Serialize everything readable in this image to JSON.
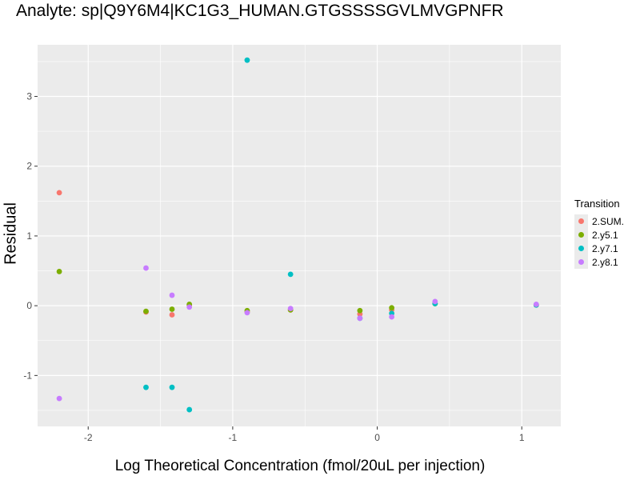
{
  "chart_data": {
    "type": "scatter",
    "title": "Analyte: sp|Q9Y6M4|KC1G3_HUMAN.GTGSSSSGVLMVGPNFR",
    "xlabel": "Log Theoretical Concentration (fmol/20uL per injection)",
    "ylabel": "Residual",
    "xlim": [
      -2.35,
      1.27
    ],
    "ylim": [
      -1.73,
      3.74
    ],
    "x_ticks": [
      -2,
      -1,
      0,
      1
    ],
    "y_ticks": [
      -1,
      0,
      1,
      2,
      3
    ],
    "x_tick_labels": [
      "-2",
      "-1",
      "0",
      "1"
    ],
    "y_tick_labels": [
      "-1",
      "0",
      "1",
      "2",
      "3"
    ],
    "grid": true,
    "legend_position": "right",
    "legend_title": "Transition",
    "series": [
      {
        "name": "2.SUM.",
        "color": "#F8766D",
        "points": [
          [
            -2.2,
            1.62
          ],
          [
            -1.6,
            -0.09
          ],
          [
            -1.42,
            -0.13
          ],
          [
            -1.3,
            0.01
          ],
          [
            -0.9,
            -0.09
          ],
          [
            -0.6,
            -0.06
          ],
          [
            -0.12,
            -0.12
          ],
          [
            0.1,
            -0.06
          ],
          [
            0.4,
            0.03
          ],
          [
            1.1,
            0.01
          ]
        ]
      },
      {
        "name": "2.y5.1",
        "color": "#7CAE00",
        "points": [
          [
            -2.2,
            0.49
          ],
          [
            -1.6,
            -0.08
          ],
          [
            -1.42,
            -0.05
          ],
          [
            -1.3,
            0.02
          ],
          [
            -0.9,
            -0.07
          ],
          [
            -0.6,
            -0.06
          ],
          [
            -0.12,
            -0.07
          ],
          [
            0.1,
            -0.03
          ],
          [
            0.4,
            0.03
          ],
          [
            1.1,
            0.01
          ]
        ]
      },
      {
        "name": "2.y7.1",
        "color": "#00BFC4",
        "points": [
          [
            -1.6,
            -1.17
          ],
          [
            -1.42,
            -1.17
          ],
          [
            -1.3,
            -1.49
          ],
          [
            -0.9,
            3.52
          ],
          [
            -0.6,
            0.45
          ],
          [
            -0.12,
            -0.18
          ],
          [
            0.1,
            -0.11
          ],
          [
            0.4,
            0.03
          ],
          [
            1.1,
            0.01
          ]
        ]
      },
      {
        "name": "2.y8.1",
        "color": "#C77CFF",
        "points": [
          [
            -2.2,
            -1.33
          ],
          [
            -1.6,
            0.54
          ],
          [
            -1.42,
            0.15
          ],
          [
            -1.3,
            -0.02
          ],
          [
            -0.9,
            -0.1
          ],
          [
            -0.6,
            -0.04
          ],
          [
            -0.12,
            -0.18
          ],
          [
            0.1,
            -0.16
          ],
          [
            0.4,
            0.06
          ],
          [
            1.1,
            0.02
          ]
        ]
      }
    ]
  }
}
